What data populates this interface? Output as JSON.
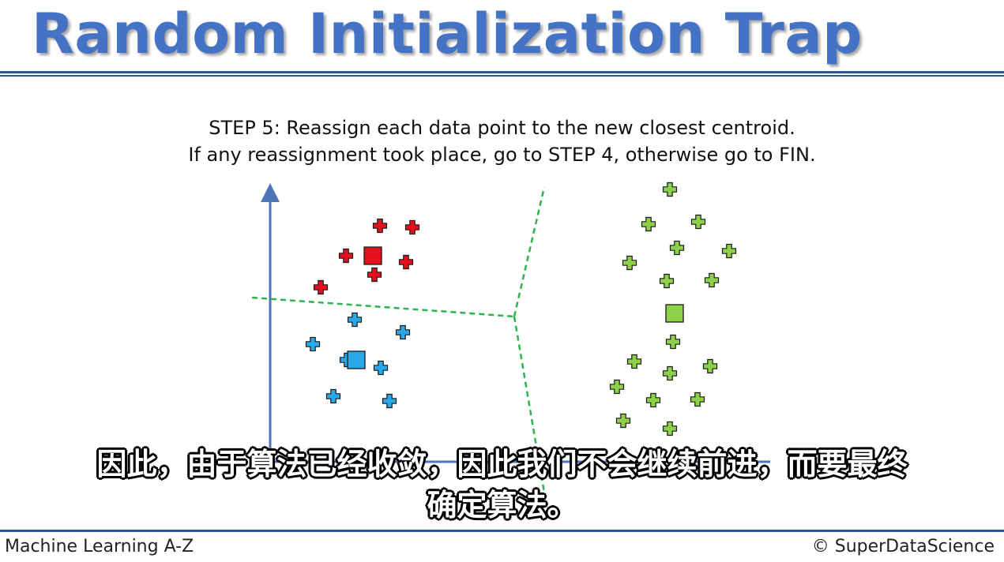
{
  "slide": {
    "title": "Random Initialization Trap",
    "step_line1": "STEP 5: Reassign each data point to the new closest centroid.",
    "step_line2": "If any reassignment took place, go to STEP 4, otherwise go to FIN."
  },
  "subtitle": {
    "line1": "因此，由于算法已经收敛，因此我们不会继续前进，而要最终",
    "line2": "确定算法。"
  },
  "footer": {
    "left": "Machine Learning A-Z",
    "right": "© SuperDataScience"
  },
  "colors": {
    "title": "#4472c4",
    "axis": "#4f74b8",
    "boundary": "#2eb34a",
    "red_cluster": "#e3101e",
    "blue_cluster": "#2aa9e8",
    "green_cluster": "#8dd04a",
    "rule": "#2f5597"
  },
  "clusters": {
    "red": {
      "color": "#e3101e",
      "centroid": [
        472,
        324
      ],
      "points": [
        [
          481,
          286
        ],
        [
          522,
          288
        ],
        [
          438,
          324
        ],
        [
          514,
          332
        ],
        [
          474,
          348
        ],
        [
          406,
          364
        ]
      ]
    },
    "blue": {
      "color": "#2aa9e8",
      "centroid": [
        451,
        456
      ],
      "points": [
        [
          449,
          405
        ],
        [
          510,
          421
        ],
        [
          396,
          436
        ],
        [
          439,
          456
        ],
        [
          482,
          466
        ],
        [
          422,
          502
        ],
        [
          493,
          508
        ]
      ]
    },
    "green": {
      "color": "#8dd04a",
      "centroid": [
        854,
        397
      ],
      "points": [
        [
          848,
          240
        ],
        [
          821,
          284
        ],
        [
          884,
          281
        ],
        [
          857,
          314
        ],
        [
          923,
          318
        ],
        [
          797,
          333
        ],
        [
          844,
          356
        ],
        [
          901,
          355
        ],
        [
          852,
          433
        ],
        [
          803,
          458
        ],
        [
          848,
          473
        ],
        [
          899,
          464
        ],
        [
          781,
          490
        ],
        [
          827,
          507
        ],
        [
          883,
          506
        ],
        [
          789,
          533
        ],
        [
          848,
          543
        ]
      ]
    }
  },
  "boundaries": [
    [
      [
        319,
        377
      ],
      [
        651,
        401
      ]
    ],
    [
      [
        651,
        401
      ],
      [
        689,
        237
      ]
    ],
    [
      [
        651,
        401
      ],
      [
        690,
        630
      ]
    ]
  ],
  "axes": {
    "origin": [
      342,
      585
    ],
    "y_end": [
      342,
      238
    ],
    "x_end": [
      975,
      585
    ]
  }
}
